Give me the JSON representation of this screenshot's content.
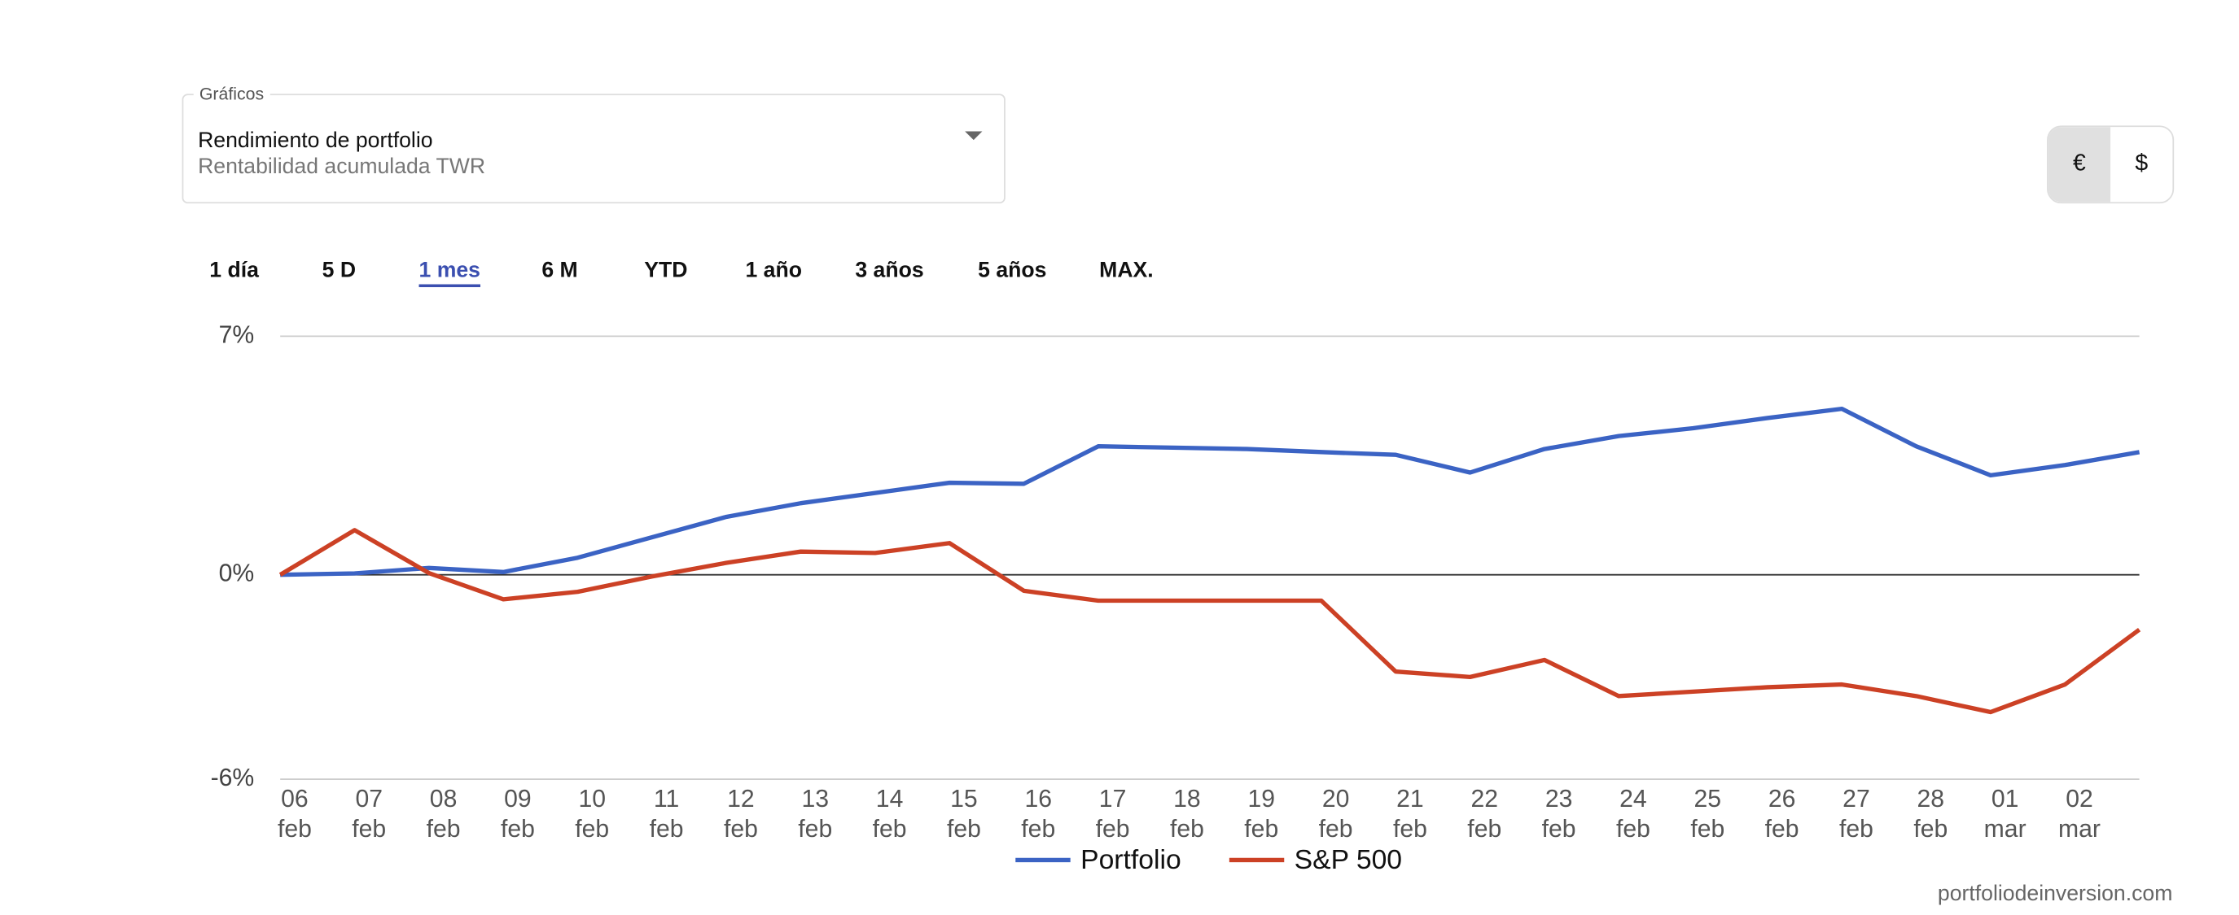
{
  "ui": {
    "selector": {
      "label": "Gráficos",
      "title": "Rendimiento de portfolio",
      "subtitle": "Rentabilidad acumulada TWR"
    },
    "ranges": [
      "1 día",
      "5 D",
      "1 mes",
      "6 M",
      "YTD",
      "1 año",
      "3 años",
      "5 años",
      "MAX."
    ],
    "active_range": "1 mes",
    "currencies": [
      "€",
      "$"
    ],
    "active_currency": "€",
    "footer": "portfoliodeinversion.com"
  },
  "chart_data": {
    "type": "line",
    "categories": [
      "06 feb",
      "07 feb",
      "08 feb",
      "09 feb",
      "10 feb",
      "11 feb",
      "12 feb",
      "13 feb",
      "14 feb",
      "15 feb",
      "16 feb",
      "17 feb",
      "18 feb",
      "19 feb",
      "20 feb",
      "21 feb",
      "22 feb",
      "23 feb",
      "24 feb",
      "25 feb",
      "26 feb",
      "27 feb",
      "28 feb",
      "01 mar",
      "02 mar",
      null
    ],
    "series": [
      {
        "name": "Portfolio",
        "color": "#3b63c4",
        "values": [
          0,
          0.04,
          0.2,
          0.08,
          0.5,
          1.1,
          1.7,
          2.1,
          2.4,
          2.7,
          2.67,
          3.77,
          3.73,
          3.69,
          3.6,
          3.52,
          3.0,
          3.69,
          4.07,
          4.3,
          4.6,
          4.87,
          3.77,
          2.92,
          3.22,
          3.6
        ]
      },
      {
        "name": "S&P 500",
        "color": "#cc4125",
        "values": [
          0,
          1.31,
          0.05,
          -0.72,
          -0.5,
          -0.05,
          0.35,
          0.68,
          0.64,
          0.93,
          -0.47,
          -0.76,
          -0.76,
          -0.76,
          -0.76,
          -2.84,
          -3.0,
          -2.5,
          -3.56,
          -3.43,
          -3.3,
          -3.22,
          -3.56,
          -4.03,
          -3.22,
          -1.61
        ]
      }
    ],
    "ylim": [
      -6,
      7
    ],
    "yticks": [
      {
        "value": 7,
        "label": "7%"
      },
      {
        "value": 0,
        "label": "0%"
      },
      {
        "value": -6,
        "label": "-6%"
      }
    ],
    "grid": true,
    "legend": "bottom"
  }
}
